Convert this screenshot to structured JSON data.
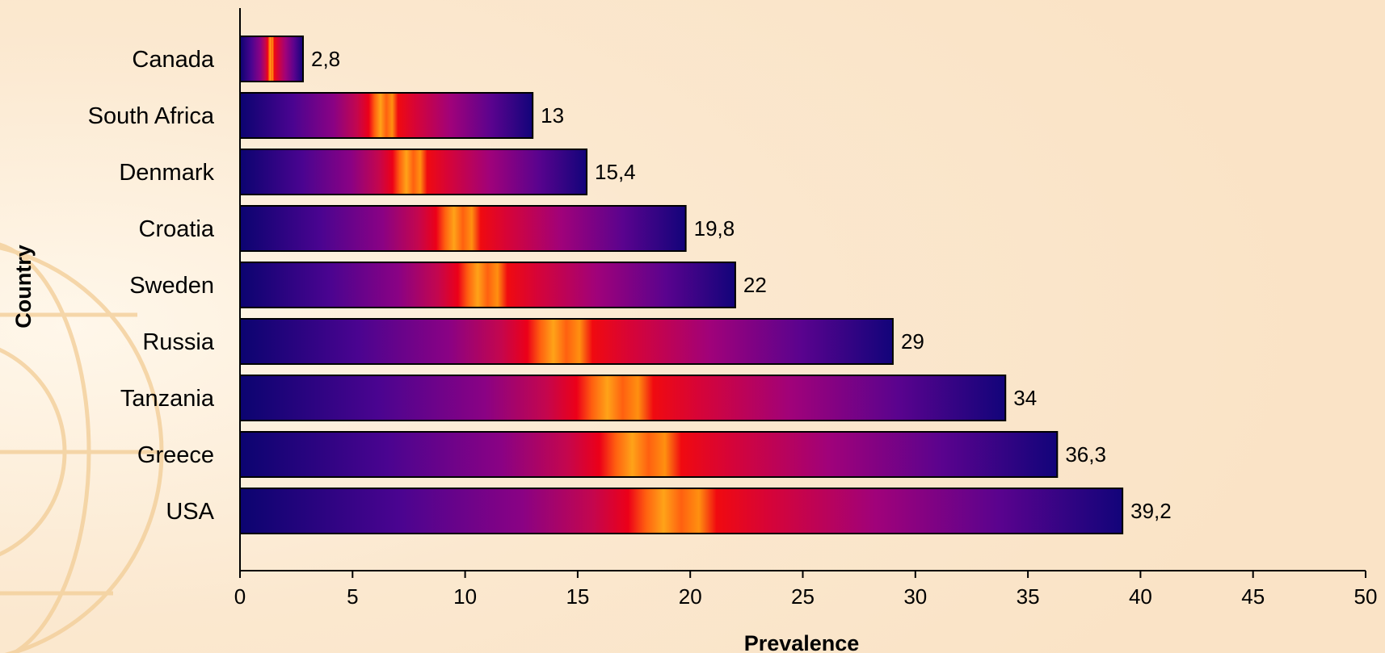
{
  "chart_data": {
    "type": "bar",
    "orientation": "horizontal",
    "categories": [
      "Canada",
      "South Africa",
      "Denmark",
      "Croatia",
      "Sweden",
      "Russia",
      "Tanzania",
      "Greece",
      "USA"
    ],
    "values": [
      2.8,
      13,
      15.4,
      19.8,
      22,
      29,
      34,
      36.3,
      39.2
    ],
    "data_labels": [
      "2,8",
      "13",
      "15,4",
      "19,8",
      "22",
      "29",
      "34",
      "36,3",
      "39,2"
    ],
    "xlabel": "Prevalence",
    "ylabel": "Country",
    "xlim": [
      0,
      50
    ],
    "xticks": [
      0,
      5,
      10,
      15,
      20,
      25,
      30,
      35,
      40,
      45,
      50
    ],
    "grid": false,
    "legend": "none",
    "bar_gradient": [
      "#0b0470",
      "#6a0390",
      "#b0056a",
      "#e8001a",
      "#ff2a00",
      "#ff9a10"
    ]
  }
}
